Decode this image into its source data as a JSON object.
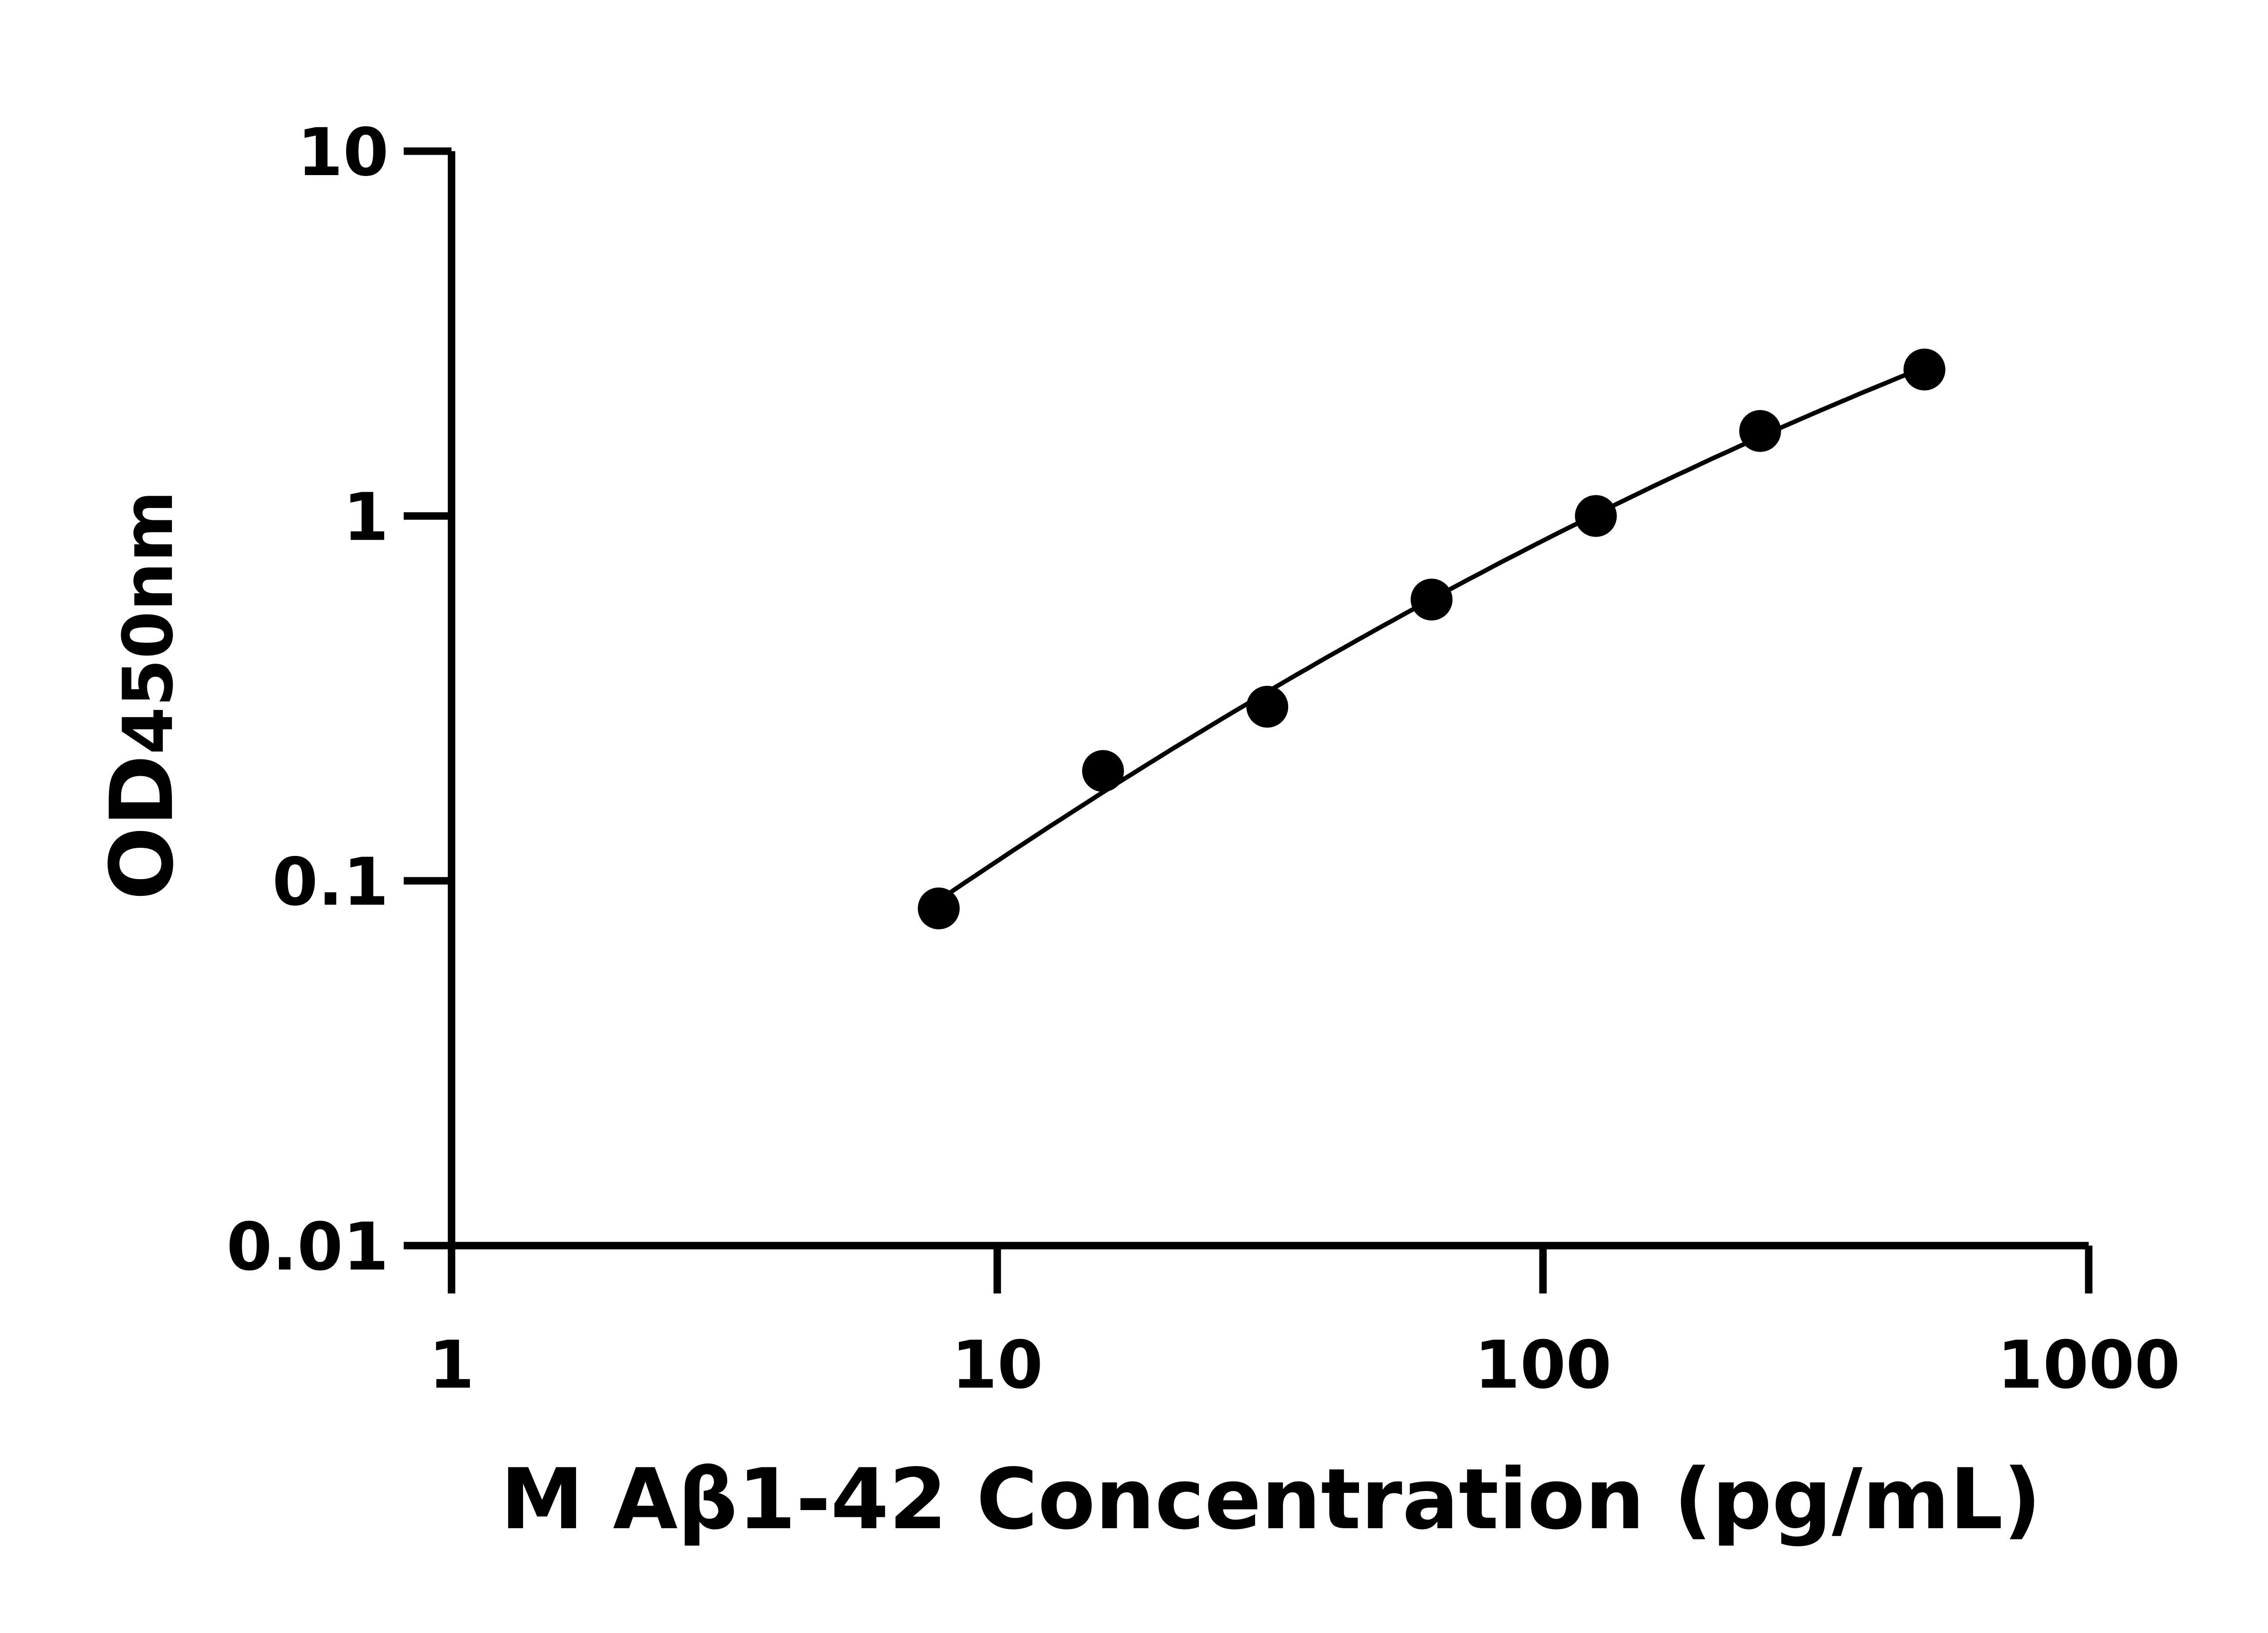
{
  "chart_data": {
    "type": "scatter",
    "title": "",
    "xlabel": "M Aβ1-42 Concentration (pg/mL)",
    "ylabel_main": "OD",
    "ylabel_sub": "450nm",
    "x_scale": "log",
    "y_scale": "log",
    "xlim": [
      1,
      1000
    ],
    "ylim": [
      0.01,
      10
    ],
    "x_ticks": [
      "1",
      "10",
      "100",
      "1000"
    ],
    "y_ticks": [
      "0.01",
      "0.1",
      "1",
      "10"
    ],
    "grid": false,
    "fit_curve": true,
    "color": "#000000",
    "series": [
      {
        "x": [
          7.8125,
          15.625,
          31.25,
          62.5,
          125,
          250,
          500
        ],
        "y": [
          0.084,
          0.2,
          0.3,
          0.59,
          1.0,
          1.71,
          2.52
        ]
      }
    ]
  }
}
